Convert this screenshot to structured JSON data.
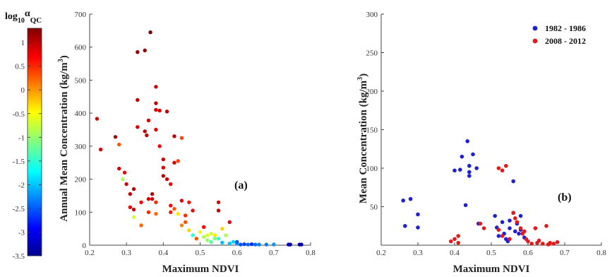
{
  "colorbar": {
    "title": "log",
    "title_sub": "10",
    "title_alpha": "α",
    "title_sub2": "QC",
    "ticks": [
      "1",
      "0.5",
      "0",
      "-0.5",
      "-1",
      "-1.5",
      "-2",
      "-2.5",
      "-3",
      "-3.5"
    ],
    "tick_values": [
      1,
      0.5,
      0,
      -0.5,
      -1,
      -1.5,
      -2,
      -2.5,
      -3,
      -3.5
    ],
    "range": [
      -3.5,
      1.3
    ],
    "colormap": "jet"
  },
  "chart_data": [
    {
      "type": "scatter",
      "panel_label": "(a)",
      "xlabel": "Maximum NDVI",
      "ylabel": "Annual Mean Concentration (kg/m",
      "ylabel_sup": "3",
      "ylabel_end": ")",
      "xlim": [
        0.2,
        0.8
      ],
      "ylim": [
        0,
        700
      ],
      "xticks": [
        "0.2",
        "0.3",
        "0.4",
        "0.5",
        "0.6",
        "0.7",
        "0.8"
      ],
      "yticks": [
        "0",
        "100",
        "200",
        "300",
        "400",
        "500",
        "600",
        "700"
      ],
      "grid": false,
      "points": [
        {
          "x": 0.22,
          "y": 383,
          "c": 0.9
        },
        {
          "x": 0.23,
          "y": 290,
          "c": 0.9
        },
        {
          "x": 0.27,
          "y": 328,
          "c": 1.1
        },
        {
          "x": 0.28,
          "y": 305,
          "c": 0.3
        },
        {
          "x": 0.28,
          "y": 232,
          "c": 0.9
        },
        {
          "x": 0.29,
          "y": 200,
          "c": -0.9
        },
        {
          "x": 0.295,
          "y": 220,
          "c": 0.8
        },
        {
          "x": 0.3,
          "y": 185,
          "c": 0.9
        },
        {
          "x": 0.31,
          "y": 155,
          "c": 1.0
        },
        {
          "x": 0.31,
          "y": 115,
          "c": 0.8
        },
        {
          "x": 0.32,
          "y": 170,
          "c": 1.0
        },
        {
          "x": 0.32,
          "y": 108,
          "c": 0.9
        },
        {
          "x": 0.32,
          "y": 85,
          "c": -0.7
        },
        {
          "x": 0.33,
          "y": 585,
          "c": 1.2
        },
        {
          "x": 0.33,
          "y": 440,
          "c": 1.0
        },
        {
          "x": 0.33,
          "y": 358,
          "c": 0.9
        },
        {
          "x": 0.34,
          "y": 60,
          "c": 0.2
        },
        {
          "x": 0.34,
          "y": 130,
          "c": 0.7
        },
        {
          "x": 0.35,
          "y": 590,
          "c": 1.2
        },
        {
          "x": 0.35,
          "y": 345,
          "c": 1.0
        },
        {
          "x": 0.355,
          "y": 333,
          "c": 1.0
        },
        {
          "x": 0.36,
          "y": 378,
          "c": 0.9
        },
        {
          "x": 0.36,
          "y": 140,
          "c": 0.9
        },
        {
          "x": 0.36,
          "y": 100,
          "c": 0.5
        },
        {
          "x": 0.365,
          "y": 645,
          "c": 1.3
        },
        {
          "x": 0.37,
          "y": 155,
          "c": 1.0
        },
        {
          "x": 0.37,
          "y": 140,
          "c": 0.9
        },
        {
          "x": 0.38,
          "y": 480,
          "c": 0.9
        },
        {
          "x": 0.38,
          "y": 430,
          "c": 1.0
        },
        {
          "x": 0.38,
          "y": 410,
          "c": 0.9
        },
        {
          "x": 0.38,
          "y": 350,
          "c": 0.8
        },
        {
          "x": 0.38,
          "y": 130,
          "c": 0.5
        },
        {
          "x": 0.38,
          "y": 95,
          "c": 0.2
        },
        {
          "x": 0.39,
          "y": 408,
          "c": 0.9
        },
        {
          "x": 0.39,
          "y": 300,
          "c": 0.8
        },
        {
          "x": 0.4,
          "y": 260,
          "c": 0.9
        },
        {
          "x": 0.4,
          "y": 235,
          "c": 0.8
        },
        {
          "x": 0.4,
          "y": 210,
          "c": 1.0
        },
        {
          "x": 0.41,
          "y": 405,
          "c": 1.0
        },
        {
          "x": 0.41,
          "y": 200,
          "c": 0.9
        },
        {
          "x": 0.42,
          "y": 185,
          "c": 0.8
        },
        {
          "x": 0.42,
          "y": 120,
          "c": 0.7
        },
        {
          "x": 0.42,
          "y": 100,
          "c": 0.6
        },
        {
          "x": 0.43,
          "y": 330,
          "c": 1.0
        },
        {
          "x": 0.43,
          "y": 250,
          "c": 0.9
        },
        {
          "x": 0.43,
          "y": 110,
          "c": 0.3
        },
        {
          "x": 0.44,
          "y": 255,
          "c": 0.4
        },
        {
          "x": 0.44,
          "y": 95,
          "c": -0.4
        },
        {
          "x": 0.45,
          "y": 325,
          "c": 0.4
        },
        {
          "x": 0.45,
          "y": 135,
          "c": 0.8
        },
        {
          "x": 0.45,
          "y": 60,
          "c": 0.1
        },
        {
          "x": 0.46,
          "y": 90,
          "c": 0.5
        },
        {
          "x": 0.46,
          "y": 70,
          "c": 0.3
        },
        {
          "x": 0.47,
          "y": 130,
          "c": 0.6
        },
        {
          "x": 0.47,
          "y": 45,
          "c": -0.3
        },
        {
          "x": 0.48,
          "y": 105,
          "c": 0.7
        },
        {
          "x": 0.48,
          "y": 30,
          "c": -1.5
        },
        {
          "x": 0.49,
          "y": 20,
          "c": 0.3
        },
        {
          "x": 0.5,
          "y": 40,
          "c": -0.6
        },
        {
          "x": 0.51,
          "y": 55,
          "c": 0.7
        },
        {
          "x": 0.51,
          "y": 25,
          "c": -0.9
        },
        {
          "x": 0.52,
          "y": 30,
          "c": -0.7
        },
        {
          "x": 0.52,
          "y": 15,
          "c": -1.0
        },
        {
          "x": 0.53,
          "y": 35,
          "c": -0.7
        },
        {
          "x": 0.53,
          "y": 10,
          "c": -1.3
        },
        {
          "x": 0.54,
          "y": 30,
          "c": -0.4
        },
        {
          "x": 0.54,
          "y": 20,
          "c": -1.1
        },
        {
          "x": 0.55,
          "y": 105,
          "c": 1.0
        },
        {
          "x": 0.55,
          "y": 130,
          "c": 0.9
        },
        {
          "x": 0.55,
          "y": 20,
          "c": -1.5
        },
        {
          "x": 0.56,
          "y": 50,
          "c": -0.3
        },
        {
          "x": 0.56,
          "y": 8,
          "c": -2.0
        },
        {
          "x": 0.57,
          "y": 30,
          "c": -0.9
        },
        {
          "x": 0.58,
          "y": 5,
          "c": -2.0
        },
        {
          "x": 0.58,
          "y": 70,
          "c": 0.8
        },
        {
          "x": 0.59,
          "y": 10,
          "c": -1.9
        },
        {
          "x": 0.6,
          "y": 5,
          "c": -2.2
        },
        {
          "x": 0.6,
          "y": 10,
          "c": -2.5
        },
        {
          "x": 0.61,
          "y": 2,
          "c": -2.5
        },
        {
          "x": 0.62,
          "y": 3,
          "c": -2.6
        },
        {
          "x": 0.63,
          "y": 2,
          "c": -2.4
        },
        {
          "x": 0.64,
          "y": 3,
          "c": -2.7
        },
        {
          "x": 0.65,
          "y": 2,
          "c": -2.4
        },
        {
          "x": 0.66,
          "y": 2,
          "c": -2.3
        },
        {
          "x": 0.68,
          "y": 2,
          "c": -2.3
        },
        {
          "x": 0.7,
          "y": 2,
          "c": -2.2
        },
        {
          "x": 0.74,
          "y": 2,
          "c": -3.2
        },
        {
          "x": 0.745,
          "y": 2,
          "c": -3.3
        },
        {
          "x": 0.77,
          "y": 2,
          "c": -3.4
        },
        {
          "x": 0.775,
          "y": 2,
          "c": -3.3
        }
      ]
    },
    {
      "type": "scatter",
      "panel_label": "(b)",
      "xlabel": "Maximum NDVI",
      "ylabel": "Mean Concentration (kg/m",
      "ylabel_sup": "3",
      "ylabel_end": ")",
      "xlim": [
        0.2,
        0.8
      ],
      "ylim": [
        0,
        300
      ],
      "xticks": [
        "0.2",
        "0.3",
        "0.4",
        "0.5",
        "0.6",
        "0.7",
        "0.8"
      ],
      "yticks": [
        "",
        "50",
        "100",
        "150",
        "200",
        "250",
        "300"
      ],
      "grid": false,
      "legend_position": "top-right",
      "series": [
        {
          "name": "1982 - 1986",
          "color": "#1f1fd6",
          "points": [
            {
              "x": 0.26,
              "y": 58
            },
            {
              "x": 0.265,
              "y": 25
            },
            {
              "x": 0.28,
              "y": 60
            },
            {
              "x": 0.3,
              "y": 40
            },
            {
              "x": 0.3,
              "y": 23
            },
            {
              "x": 0.4,
              "y": 97
            },
            {
              "x": 0.415,
              "y": 98
            },
            {
              "x": 0.42,
              "y": 115
            },
            {
              "x": 0.43,
              "y": 52
            },
            {
              "x": 0.435,
              "y": 135
            },
            {
              "x": 0.44,
              "y": 103
            },
            {
              "x": 0.44,
              "y": 95
            },
            {
              "x": 0.44,
              "y": 90
            },
            {
              "x": 0.45,
              "y": 118
            },
            {
              "x": 0.46,
              "y": 100
            },
            {
              "x": 0.465,
              "y": 28
            },
            {
              "x": 0.51,
              "y": 38
            },
            {
              "x": 0.515,
              "y": 23
            },
            {
              "x": 0.52,
              "y": 20
            },
            {
              "x": 0.53,
              "y": 30
            },
            {
              "x": 0.535,
              "y": 15
            },
            {
              "x": 0.54,
              "y": 8
            },
            {
              "x": 0.545,
              "y": 5
            },
            {
              "x": 0.55,
              "y": 22
            },
            {
              "x": 0.55,
              "y": 32
            },
            {
              "x": 0.56,
              "y": 83
            },
            {
              "x": 0.56,
              "y": 42
            },
            {
              "x": 0.565,
              "y": 18
            },
            {
              "x": 0.57,
              "y": 28
            },
            {
              "x": 0.575,
              "y": 15
            },
            {
              "x": 0.58,
              "y": 20
            },
            {
              "x": 0.58,
              "y": 38
            },
            {
              "x": 0.59,
              "y": 10
            },
            {
              "x": 0.52,
              "y": 12
            }
          ]
        },
        {
          "name": "2008 - 2012",
          "color": "#e31a1c",
          "points": [
            {
              "x": 0.39,
              "y": 5
            },
            {
              "x": 0.4,
              "y": 8
            },
            {
              "x": 0.41,
              "y": 12
            },
            {
              "x": 0.41,
              "y": 3
            },
            {
              "x": 0.47,
              "y": 28
            },
            {
              "x": 0.48,
              "y": 22
            },
            {
              "x": 0.52,
              "y": 100
            },
            {
              "x": 0.53,
              "y": 97
            },
            {
              "x": 0.54,
              "y": 103
            },
            {
              "x": 0.52,
              "y": 20
            },
            {
              "x": 0.53,
              "y": 12
            },
            {
              "x": 0.55,
              "y": 8
            },
            {
              "x": 0.56,
              "y": 42
            },
            {
              "x": 0.565,
              "y": 35
            },
            {
              "x": 0.57,
              "y": 30
            },
            {
              "x": 0.58,
              "y": 22
            },
            {
              "x": 0.585,
              "y": 15
            },
            {
              "x": 0.59,
              "y": 18
            },
            {
              "x": 0.595,
              "y": 8
            },
            {
              "x": 0.6,
              "y": 5
            },
            {
              "x": 0.61,
              "y": 2
            },
            {
              "x": 0.62,
              "y": 22
            },
            {
              "x": 0.625,
              "y": 3
            },
            {
              "x": 0.63,
              "y": 6
            },
            {
              "x": 0.64,
              "y": 2
            },
            {
              "x": 0.65,
              "y": 25
            },
            {
              "x": 0.66,
              "y": 3
            },
            {
              "x": 0.67,
              "y": 2
            },
            {
              "x": 0.68,
              "y": 4
            },
            {
              "x": 0.655,
              "y": 1
            }
          ]
        }
      ]
    }
  ]
}
